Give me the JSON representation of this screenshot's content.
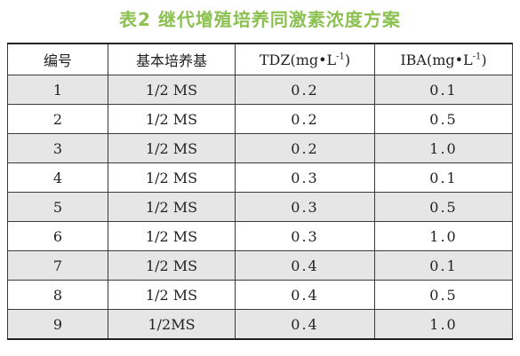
{
  "caption": "表2   继代增殖培养同激素浓度方案",
  "headers": {
    "col1": "编号",
    "col2": "基本培养基",
    "col3_main": "TDZ(mg•L",
    "col3_sup": "-1",
    "col3_end": ")",
    "col4_main": "IBA(mg•L",
    "col4_sup": "-1",
    "col4_end": ")"
  },
  "rows": [
    {
      "no": "1",
      "medium": "1/2 MS",
      "tdz": "0.2",
      "iba": "0.1"
    },
    {
      "no": "2",
      "medium": "1/2 MS",
      "tdz": "0.2",
      "iba": "0.5"
    },
    {
      "no": "3",
      "medium": "1/2 MS",
      "tdz": "0.2",
      "iba": "1.0"
    },
    {
      "no": "4",
      "medium": "1/2 MS",
      "tdz": "0.3",
      "iba": "0.1"
    },
    {
      "no": "5",
      "medium": "1/2 MS",
      "tdz": "0.3",
      "iba": "0.5"
    },
    {
      "no": "6",
      "medium": "1/2 MS",
      "tdz": "0.3",
      "iba": "1.0"
    },
    {
      "no": "7",
      "medium": "1/2 MS",
      "tdz": "0.4",
      "iba": "0.1"
    },
    {
      "no": "8",
      "medium": "1/2 MS",
      "tdz": "0.4",
      "iba": "0.5"
    },
    {
      "no": "9",
      "medium": "1/2MS",
      "tdz": "0.4",
      "iba": "1.0"
    }
  ],
  "colors": {
    "caption": "#8cc152",
    "row_stripe": "#e6e6e6",
    "border": "#3a3a3a"
  }
}
